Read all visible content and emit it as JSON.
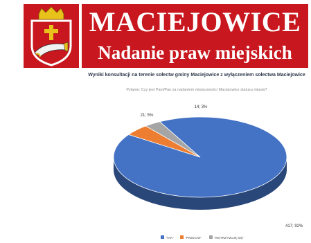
{
  "banner": {
    "title": "MACIEJOWICE",
    "subtitle": "Nadanie praw miejskich",
    "colors": {
      "background": "#c8171e",
      "text": "#ffffff",
      "crest_gold": "#e8c21b"
    }
  },
  "chart_data": {
    "type": "pie",
    "title": "Wyniki konsultacji na terenie sołectw gminy Maciejowice z wyłączeniem sołectwa Maciejowice",
    "subtitle": "Pytanie: Czy jest Pani/Pan za nadaniem miejscowości Maciejowice statusu miasta?",
    "slices": [
      {
        "label": "TAK",
        "value": 417,
        "percent": 92,
        "data_label": "417; 92%",
        "color": "#4472c4"
      },
      {
        "label": "PRZECIW",
        "value": 21,
        "percent": 5,
        "data_label": "21; 5%",
        "color": "#ed7d31"
      },
      {
        "label": "WSTRZYMUJĘ SIĘ",
        "value": 14,
        "percent": 3,
        "data_label": "14; 3%",
        "color": "#a5a5a5"
      }
    ],
    "legend_position": "bottom"
  }
}
